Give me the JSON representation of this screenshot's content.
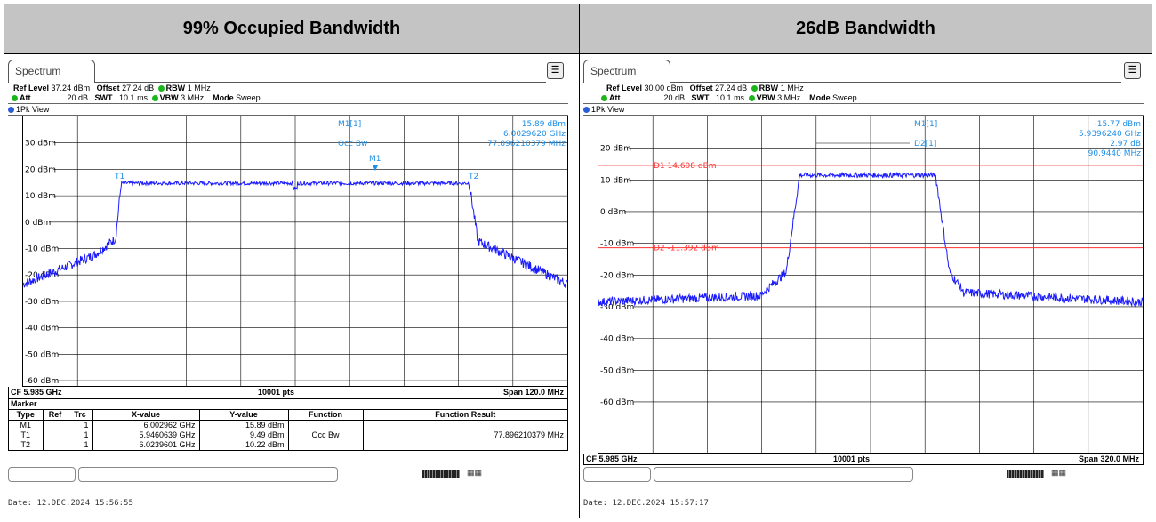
{
  "panels": [
    {
      "heading": "99% Occupied Bandwidth",
      "tab": "Spectrum",
      "ref_level_label": "Ref Level",
      "ref_level": "37.24 dBm",
      "offset_label": "Offset",
      "offset": "27.24 dB",
      "rbw_label": "RBW",
      "rbw": "1 MHz",
      "att_label": "Att",
      "att": "20 dB",
      "swt_label": "SWT",
      "swt": "10.1 ms",
      "vbw_label": "VBW",
      "vbw": "3 MHz",
      "mode_label": "Mode",
      "mode": "Sweep",
      "view": "1Pk View",
      "y_ticks": [
        "30 dBm",
        "20 dBm",
        "10 dBm",
        "0 dBm",
        "-10 dBm",
        "-20 dBm",
        "-30 dBm",
        "-40 dBm",
        "-50 dBm",
        "-60 dBm"
      ],
      "marker_readout": [
        {
          "label": "M1[1]",
          "value": "15.89 dBm"
        },
        {
          "label": "",
          "value": "6.0029620 GHz"
        },
        {
          "label": "Occ Bw",
          "value": "77.896210379 MHz"
        }
      ],
      "trace_labels": [
        "T1",
        "M1",
        "T2"
      ],
      "cf": "CF 5.985 GHz",
      "pts": "10001 pts",
      "span": "Span 120.0 MHz",
      "marker_table": {
        "title": "Marker",
        "headers": [
          "Type",
          "Ref",
          "Trc",
          "X-value",
          "Y-value",
          "Function",
          "Function Result"
        ],
        "rows": [
          [
            "M1",
            "",
            "1",
            "6.002962 GHz",
            "15.89 dBm",
            "",
            ""
          ],
          [
            "T1",
            "",
            "1",
            "5.9460639 GHz",
            "9.49 dBm",
            "Occ Bw",
            "77.896210379 MHz"
          ],
          [
            "T2",
            "",
            "1",
            "6.0239601 GHz",
            "10.22 dBm",
            "",
            ""
          ]
        ]
      },
      "date": "Date: 12.DEC.2024  15:56:55"
    },
    {
      "heading": "26dB Bandwidth",
      "tab": "Spectrum",
      "ref_level_label": "Ref Level",
      "ref_level": "30.00 dBm",
      "offset_label": "Offset",
      "offset": "27.24 dB",
      "rbw_label": "RBW",
      "rbw": "1 MHz",
      "att_label": "Att",
      "att": "20 dB",
      "swt_label": "SWT",
      "swt": "10.1 ms",
      "vbw_label": "VBW",
      "vbw": "3 MHz",
      "mode_label": "Mode",
      "mode": "Sweep",
      "view": "1Pk View",
      "y_ticks": [
        "20 dBm",
        "10 dBm",
        "0 dBm",
        "-10 dBm",
        "-20 dBm",
        "-30 dBm",
        "-40 dBm",
        "-50 dBm",
        "-60 dBm"
      ],
      "marker_readout": [
        {
          "label": "M1[1]",
          "value": "-15.77 dBm"
        },
        {
          "label": "",
          "value": "5.9396240 GHz"
        },
        {
          "label": "D2[1]",
          "value": "2.97 dB"
        },
        {
          "label": "",
          "value": "90.9440 MHz"
        }
      ],
      "d1_label": "D1 14.608 dBm",
      "d2_label": "D2 -11.392 dBm",
      "cf": "CF 5.985 GHz",
      "pts": "10001 pts",
      "span": "Span 320.0 MHz",
      "date": "Date: 12.DEC.2024  15:57:17"
    }
  ],
  "colors": {
    "trace": "#1a1aff",
    "marker_text": "#1f8fe6",
    "display_line": "#ff3030",
    "header_bg": "#c4c4c4"
  }
}
